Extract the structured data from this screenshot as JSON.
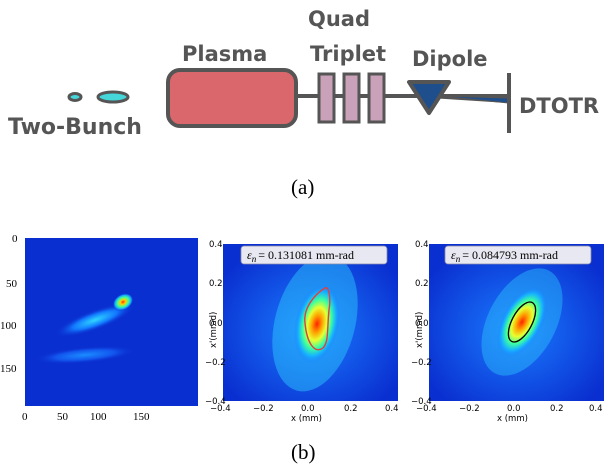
{
  "schematic": {
    "two_bunch_label": "Two-Bunch",
    "plasma_label": "Plasma",
    "quad_label_line1": "Quad",
    "quad_label_line2": "Triplet",
    "dipole_label": "Dipole",
    "dtotr_label": "DTOTR",
    "caption": "(a)"
  },
  "panels": {
    "caption": "(b)",
    "image_panel": {
      "x_ticks": [
        "0",
        "50",
        "100",
        "150"
      ],
      "y_ticks": [
        "0",
        "50",
        "100",
        "150"
      ]
    },
    "phase_panel_1": {
      "emittance_symbol": "ε",
      "emittance_subscript": "n",
      "emittance_text": "= 0.131081 mm-rad",
      "xlabel": "x (mm)",
      "ylabel": "x'(mrad)",
      "x_ticks": [
        "−0.4",
        "−0.2",
        "0.0",
        "0.2",
        "0.4"
      ],
      "y_ticks": [
        "0.4",
        "0.2",
        "0.0",
        "−0.2",
        "−0.4"
      ]
    },
    "phase_panel_2": {
      "emittance_symbol": "ε",
      "emittance_subscript": "n",
      "emittance_text": "= 0.084793 mm-rad",
      "xlabel": "x (mm)",
      "ylabel": "x'(mrad)",
      "x_ticks": [
        "−0.4",
        "−0.2",
        "0.0",
        "0.2",
        "0.4"
      ],
      "y_ticks": [
        "0.4",
        "0.2",
        "0.0",
        "−0.2",
        "−0.4"
      ]
    }
  },
  "colors": {
    "plasma_fill": "#d9676b",
    "quad_fill": "#c9a1b8",
    "dipole_fill": "#1f4e8c",
    "bunch_fill": "#45d6d9",
    "outline": "#555555",
    "background_blue": "#0a2fd0"
  }
}
